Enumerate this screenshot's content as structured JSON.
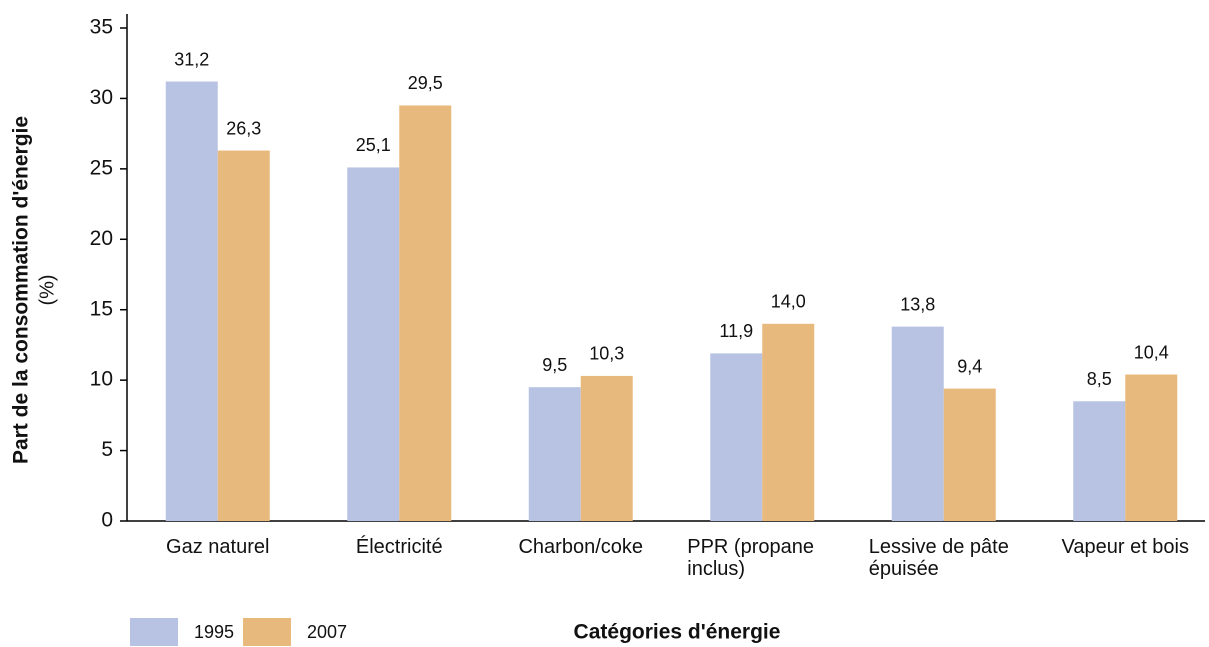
{
  "chart_data": {
    "type": "bar",
    "y_label": "Part de la consommation d'énergie",
    "y_label_unit": "(%)",
    "x_label": "Catégories d'énergie",
    "categories": [
      "Gaz naturel",
      "Électricité",
      "Charbon/coke",
      "PPR (propane inclus)",
      "Lessive de pâte épuisée",
      "Vapeur et bois"
    ],
    "series": [
      {
        "name": "1995",
        "color": "#b8c3e3",
        "values": [
          31.2,
          25.1,
          9.5,
          11.9,
          13.8,
          8.5
        ],
        "value_labels": [
          "31,2",
          "25,1",
          "9,5",
          "11,9",
          "13,8",
          "8,5"
        ]
      },
      {
        "name": "2007",
        "color": "#e8b97c",
        "values": [
          26.3,
          29.5,
          10.3,
          14.0,
          9.4,
          10.4
        ],
        "value_labels": [
          "26,3",
          "29,5",
          "10,3",
          "14,0",
          "9,4",
          "10,4"
        ]
      }
    ],
    "ylim": [
      0,
      35
    ],
    "yticks": [
      0,
      5,
      10,
      15,
      20,
      25,
      30,
      35
    ],
    "legend": "bottom-left"
  }
}
